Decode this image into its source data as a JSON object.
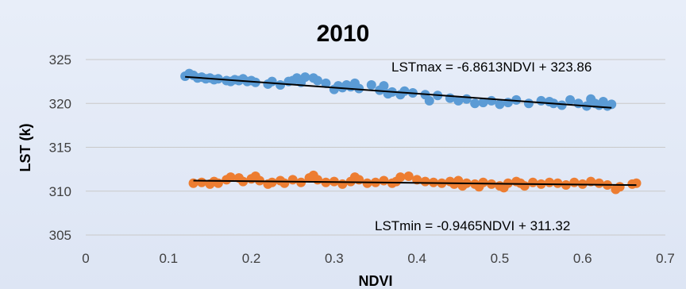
{
  "chart_data": {
    "type": "scatter",
    "title": "2010",
    "xlabel": "NDVI",
    "ylabel": "LST  (k)",
    "xlim": [
      0,
      0.7
    ],
    "ylim": [
      305,
      325
    ],
    "xticks": [
      "0",
      "0.1",
      "0.2",
      "0.3",
      "0.4",
      "0.5",
      "0.6",
      "0.7"
    ],
    "yticks": [
      "305",
      "310",
      "315",
      "320",
      "325"
    ],
    "grid": "horizontal",
    "series": [
      {
        "color": "#5b9bd5",
        "trendline": {
          "slope": -6.8613,
          "intercept": 323.86,
          "label": "LSTmax = -6.8613NDVI + 323.86"
        },
        "points": [
          [
            0.12,
            323.1
          ],
          [
            0.125,
            323.4
          ],
          [
            0.13,
            323.2
          ],
          [
            0.135,
            322.9
          ],
          [
            0.14,
            323.0
          ],
          [
            0.145,
            322.8
          ],
          [
            0.15,
            322.9
          ],
          [
            0.155,
            322.7
          ],
          [
            0.16,
            322.8
          ],
          [
            0.17,
            322.6
          ],
          [
            0.175,
            322.5
          ],
          [
            0.18,
            322.7
          ],
          [
            0.185,
            322.6
          ],
          [
            0.19,
            322.8
          ],
          [
            0.195,
            322.5
          ],
          [
            0.2,
            322.6
          ],
          [
            0.205,
            322.4
          ],
          [
            0.22,
            322.2
          ],
          [
            0.225,
            322.5
          ],
          [
            0.235,
            322.1
          ],
          [
            0.245,
            322.5
          ],
          [
            0.25,
            322.6
          ],
          [
            0.255,
            322.9
          ],
          [
            0.26,
            322.4
          ],
          [
            0.265,
            323.0
          ],
          [
            0.275,
            322.9
          ],
          [
            0.28,
            322.6
          ],
          [
            0.29,
            322.3
          ],
          [
            0.3,
            321.6
          ],
          [
            0.305,
            322.0
          ],
          [
            0.31,
            321.8
          ],
          [
            0.315,
            322.1
          ],
          [
            0.32,
            321.9
          ],
          [
            0.325,
            322.3
          ],
          [
            0.33,
            321.7
          ],
          [
            0.345,
            322.1
          ],
          [
            0.355,
            321.5
          ],
          [
            0.36,
            322.0
          ],
          [
            0.365,
            321.1
          ],
          [
            0.37,
            321.3
          ],
          [
            0.38,
            321.0
          ],
          [
            0.385,
            321.4
          ],
          [
            0.395,
            321.2
          ],
          [
            0.41,
            321.0
          ],
          [
            0.415,
            320.3
          ],
          [
            0.425,
            320.9
          ],
          [
            0.44,
            320.6
          ],
          [
            0.45,
            320.3
          ],
          [
            0.46,
            320.5
          ],
          [
            0.47,
            320.0
          ],
          [
            0.48,
            320.1
          ],
          [
            0.49,
            320.3
          ],
          [
            0.5,
            319.9
          ],
          [
            0.51,
            320.1
          ],
          [
            0.52,
            320.4
          ],
          [
            0.535,
            320.0
          ],
          [
            0.55,
            320.3
          ],
          [
            0.56,
            320.2
          ],
          [
            0.565,
            320.0
          ],
          [
            0.575,
            319.8
          ],
          [
            0.585,
            320.4
          ],
          [
            0.595,
            320.0
          ],
          [
            0.605,
            319.7
          ],
          [
            0.61,
            320.5
          ],
          [
            0.615,
            320.0
          ],
          [
            0.62,
            319.8
          ],
          [
            0.625,
            320.2
          ],
          [
            0.63,
            319.7
          ],
          [
            0.635,
            319.9
          ]
        ]
      },
      {
        "color": "#ed7d31",
        "trendline": {
          "slope": -0.9465,
          "intercept": 311.32,
          "label": "LSTmin = -0.9465NDVI + 311.32"
        },
        "points": [
          [
            0.13,
            310.9
          ],
          [
            0.14,
            311.0
          ],
          [
            0.15,
            310.8
          ],
          [
            0.155,
            311.1
          ],
          [
            0.16,
            310.9
          ],
          [
            0.17,
            311.3
          ],
          [
            0.175,
            311.6
          ],
          [
            0.185,
            311.5
          ],
          [
            0.19,
            311.1
          ],
          [
            0.2,
            311.4
          ],
          [
            0.205,
            311.7
          ],
          [
            0.21,
            311.2
          ],
          [
            0.22,
            310.8
          ],
          [
            0.225,
            311.0
          ],
          [
            0.235,
            311.2
          ],
          [
            0.24,
            310.9
          ],
          [
            0.25,
            311.3
          ],
          [
            0.26,
            311.0
          ],
          [
            0.27,
            311.5
          ],
          [
            0.275,
            311.8
          ],
          [
            0.28,
            311.3
          ],
          [
            0.29,
            311.0
          ],
          [
            0.3,
            311.1
          ],
          [
            0.31,
            310.8
          ],
          [
            0.32,
            311.1
          ],
          [
            0.325,
            311.6
          ],
          [
            0.33,
            311.3
          ],
          [
            0.34,
            310.9
          ],
          [
            0.35,
            311.0
          ],
          [
            0.36,
            311.2
          ],
          [
            0.37,
            310.9
          ],
          [
            0.375,
            311.1
          ],
          [
            0.38,
            311.6
          ],
          [
            0.39,
            311.7
          ],
          [
            0.4,
            311.3
          ],
          [
            0.41,
            311.1
          ],
          [
            0.42,
            311.0
          ],
          [
            0.43,
            310.9
          ],
          [
            0.44,
            311.1
          ],
          [
            0.445,
            310.8
          ],
          [
            0.45,
            311.2
          ],
          [
            0.455,
            310.6
          ],
          [
            0.46,
            310.9
          ],
          [
            0.47,
            310.8
          ],
          [
            0.475,
            310.5
          ],
          [
            0.48,
            311.0
          ],
          [
            0.49,
            310.8
          ],
          [
            0.5,
            310.6
          ],
          [
            0.505,
            310.4
          ],
          [
            0.51,
            310.9
          ],
          [
            0.52,
            311.1
          ],
          [
            0.525,
            310.9
          ],
          [
            0.53,
            310.6
          ],
          [
            0.54,
            311.0
          ],
          [
            0.55,
            310.8
          ],
          [
            0.56,
            311.0
          ],
          [
            0.57,
            310.9
          ],
          [
            0.58,
            310.7
          ],
          [
            0.59,
            311.0
          ],
          [
            0.6,
            310.8
          ],
          [
            0.61,
            311.1
          ],
          [
            0.62,
            310.9
          ],
          [
            0.63,
            310.7
          ],
          [
            0.64,
            310.2
          ],
          [
            0.645,
            310.5
          ],
          [
            0.66,
            310.8
          ],
          [
            0.665,
            310.9
          ]
        ]
      }
    ]
  }
}
